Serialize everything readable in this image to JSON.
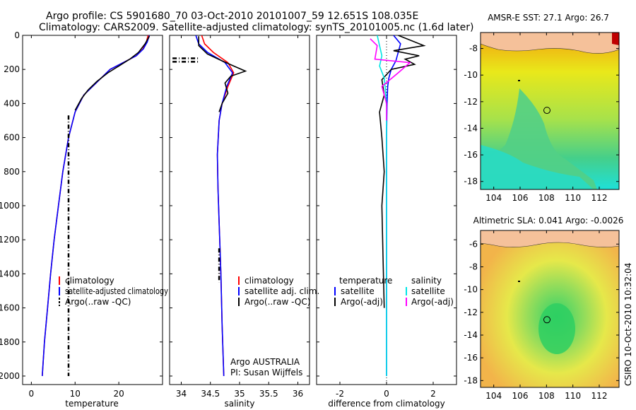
{
  "header": {
    "line1": "Argo profile: CS 5901680_70 03-Oct-2010 20101007_59 12.651S 108.035E",
    "line2": "Climatology: CARS2009. Satellite-adjusted climatology: synTS_20101005.nc (1.6d later)"
  },
  "side_text": "CSIRO 10-Oct-2010 10:32:04",
  "chart_data": [
    {
      "type": "line",
      "id": "temperature",
      "xlabel": "temperature",
      "xlim": [
        -2,
        30
      ],
      "ylim": [
        0,
        2050
      ],
      "xticks": [
        0,
        10,
        20
      ],
      "yticks": [
        0,
        200,
        400,
        600,
        800,
        1000,
        1200,
        1400,
        1600,
        1800,
        2000
      ],
      "legend": [
        "climatology",
        "satellite-adjusted climatology",
        "Argo(..raw -QC)"
      ],
      "series": [
        {
          "name": "climatology",
          "color": "#ff0000",
          "x": [
            26.7,
            26.3,
            25.5,
            24.0,
            21.0,
            18.0,
            16.0,
            14.0,
            12.0,
            10.0,
            8.5,
            7.2,
            6.2,
            5.2,
            4.4,
            3.7,
            3.0,
            2.5
          ],
          "y": [
            0,
            40,
            80,
            120,
            160,
            200,
            250,
            300,
            350,
            450,
            600,
            800,
            1000,
            1200,
            1400,
            1600,
            1800,
            2000
          ]
        },
        {
          "name": "satellite-adjusted climatology",
          "color": "#0000ff",
          "x": [
            27.0,
            26.5,
            25.6,
            24.0,
            21.0,
            18.0,
            16.0,
            14.0,
            12.0,
            10.0,
            8.5,
            7.2,
            6.2,
            5.2,
            4.4,
            3.7,
            3.0,
            2.5
          ],
          "y": [
            0,
            40,
            80,
            120,
            160,
            200,
            250,
            300,
            350,
            450,
            600,
            800,
            1000,
            1200,
            1400,
            1600,
            1800,
            2000
          ]
        },
        {
          "name": "Argo(..raw -QC)",
          "color": "#000000",
          "x": [
            27.0,
            26.0,
            24.5,
            22.5,
            20.0,
            17.5,
            15.0,
            13.0,
            11.5,
            10.0
          ],
          "y": [
            5,
            50,
            100,
            140,
            180,
            220,
            270,
            320,
            370,
            440
          ]
        },
        {
          "name": "Argo(..raw -QC)",
          "color": "#000000",
          "dashed": true,
          "x": [
            8.5,
            8.5
          ],
          "y": [
            470,
            2000
          ]
        }
      ]
    },
    {
      "type": "line",
      "id": "salinity",
      "xlabel": "salinity",
      "xlim": [
        33.8,
        36.2
      ],
      "ylim": [
        0,
        2050
      ],
      "xticks": [
        34,
        34.5,
        35,
        35.5,
        36
      ],
      "yticks": [
        0,
        200,
        400,
        600,
        800,
        1000,
        1200,
        1400,
        1600,
        1800,
        2000
      ],
      "legend": [
        "climatology",
        "satellite adj. clim.",
        "Argo(..raw -QC)"
      ],
      "note": [
        "Argo AUSTRALIA",
        "PI: Susan Wijffels"
      ],
      "series": [
        {
          "name": "climatology",
          "color": "#ff0000",
          "x": [
            34.35,
            34.4,
            34.55,
            34.8,
            34.9,
            34.8,
            34.7,
            34.65,
            34.62,
            34.63,
            34.65,
            34.68,
            34.7,
            34.72,
            34.73
          ],
          "y": [
            0,
            50,
            100,
            160,
            220,
            300,
            400,
            500,
            700,
            900,
            1100,
            1400,
            1700,
            1900,
            2000
          ]
        },
        {
          "name": "satellite adj. clim.",
          "color": "#0000ff",
          "x": [
            34.25,
            34.3,
            34.45,
            34.75,
            34.88,
            34.78,
            34.7,
            34.65,
            34.62,
            34.63,
            34.65,
            34.68,
            34.7,
            34.72,
            34.73
          ],
          "y": [
            0,
            50,
            100,
            160,
            220,
            300,
            400,
            500,
            700,
            900,
            1100,
            1400,
            1700,
            1900,
            2000
          ]
        },
        {
          "name": "Argo(..raw -QC)",
          "color": "#000000",
          "x": [
            34.3,
            34.3,
            34.45,
            34.7,
            34.9,
            35.1,
            34.85,
            34.75,
            34.8,
            34.7,
            34.65
          ],
          "y": [
            5,
            60,
            110,
            150,
            180,
            210,
            240,
            280,
            340,
            400,
            450
          ]
        },
        {
          "name": "Argo(..raw -QC)",
          "color": "#000000",
          "dashed": true,
          "x": [
            33.85,
            34.3
          ],
          "y": [
            135,
            135
          ]
        },
        {
          "name": "Argo(..raw -QC)",
          "color": "#000000",
          "dashed": true,
          "x": [
            33.85,
            34.3
          ],
          "y": [
            155,
            155
          ]
        },
        {
          "name": "Argo(..raw -QC)",
          "color": "#000000",
          "dashed": true,
          "x": [
            34.65,
            34.65
          ],
          "y": [
            1250,
            1450
          ]
        }
      ]
    },
    {
      "type": "line",
      "id": "difference",
      "xlabel": "difference from climatology",
      "xlim": [
        -3,
        3
      ],
      "ylim": [
        0,
        2050
      ],
      "xticks": [
        -2,
        0,
        2
      ],
      "yticks": [
        0,
        200,
        400,
        600,
        800,
        1000,
        1200,
        1400,
        1600,
        1800,
        2000
      ],
      "legend_titles": [
        "temperature",
        "salinity"
      ],
      "legend_left": [
        "satellite",
        "Argo(-adj)"
      ],
      "legend_right": [
        "satellite",
        "Argo(-adj)"
      ],
      "series": [
        {
          "name": "temperature satellite",
          "color": "#0000ff",
          "x": [
            0.3,
            0.6,
            0.5,
            0.4,
            0.2,
            0.1,
            0.05,
            0.02,
            0.0,
            0.0,
            0.0
          ],
          "y": [
            0,
            50,
            100,
            150,
            200,
            250,
            300,
            400,
            600,
            1000,
            2000
          ]
        },
        {
          "name": "temperature Argo(-adj)",
          "color": "#000000",
          "x": [
            0.5,
            1.6,
            0.3,
            1.4,
            0.8,
            1.2,
            0.2,
            -0.2,
            -0.1,
            -0.3,
            -0.2,
            -0.1,
            -0.2,
            -0.15,
            -0.1
          ],
          "y": [
            0,
            60,
            90,
            120,
            140,
            170,
            200,
            260,
            350,
            450,
            600,
            800,
            1000,
            1300,
            1600
          ]
        },
        {
          "name": "salinity satellite",
          "color": "#00e5e5",
          "x": [
            -0.4,
            -0.3,
            -0.2,
            -0.3,
            -0.1,
            -0.05,
            0.0,
            0.0,
            0.0
          ],
          "y": [
            0,
            60,
            120,
            180,
            250,
            320,
            420,
            800,
            2000
          ]
        },
        {
          "name": "salinity Argo(-adj)",
          "color": "#ff00ff",
          "x": [
            -0.7,
            -0.4,
            -0.5,
            1.0,
            0.5,
            -0.2,
            0.0,
            0.0
          ],
          "y": [
            20,
            60,
            140,
            160,
            220,
            300,
            400,
            500
          ]
        }
      ]
    },
    {
      "type": "heatmap",
      "id": "sst_map",
      "title": "AMSR-E SST: 27.1 Argo: 26.7",
      "xticks": [
        104,
        106,
        108,
        110,
        112
      ],
      "yticks": [
        -8,
        -10,
        -12,
        -14,
        -16,
        -18
      ],
      "xlim": [
        103,
        113.5
      ],
      "ylim": [
        -18.6,
        -6.8
      ],
      "marker": [
        108.035,
        -12.651
      ]
    },
    {
      "type": "heatmap",
      "id": "sla_map",
      "title": "Altimetric SLA: 0.041 Argo: -0.0026",
      "xticks": [
        104,
        106,
        108,
        110,
        112
      ],
      "yticks": [
        -6,
        -8,
        -10,
        -12,
        -14,
        -16,
        -18
      ],
      "xlim": [
        103,
        113.5
      ],
      "ylim": [
        -18.6,
        -4.8
      ],
      "marker": [
        108.035,
        -12.651
      ]
    }
  ]
}
